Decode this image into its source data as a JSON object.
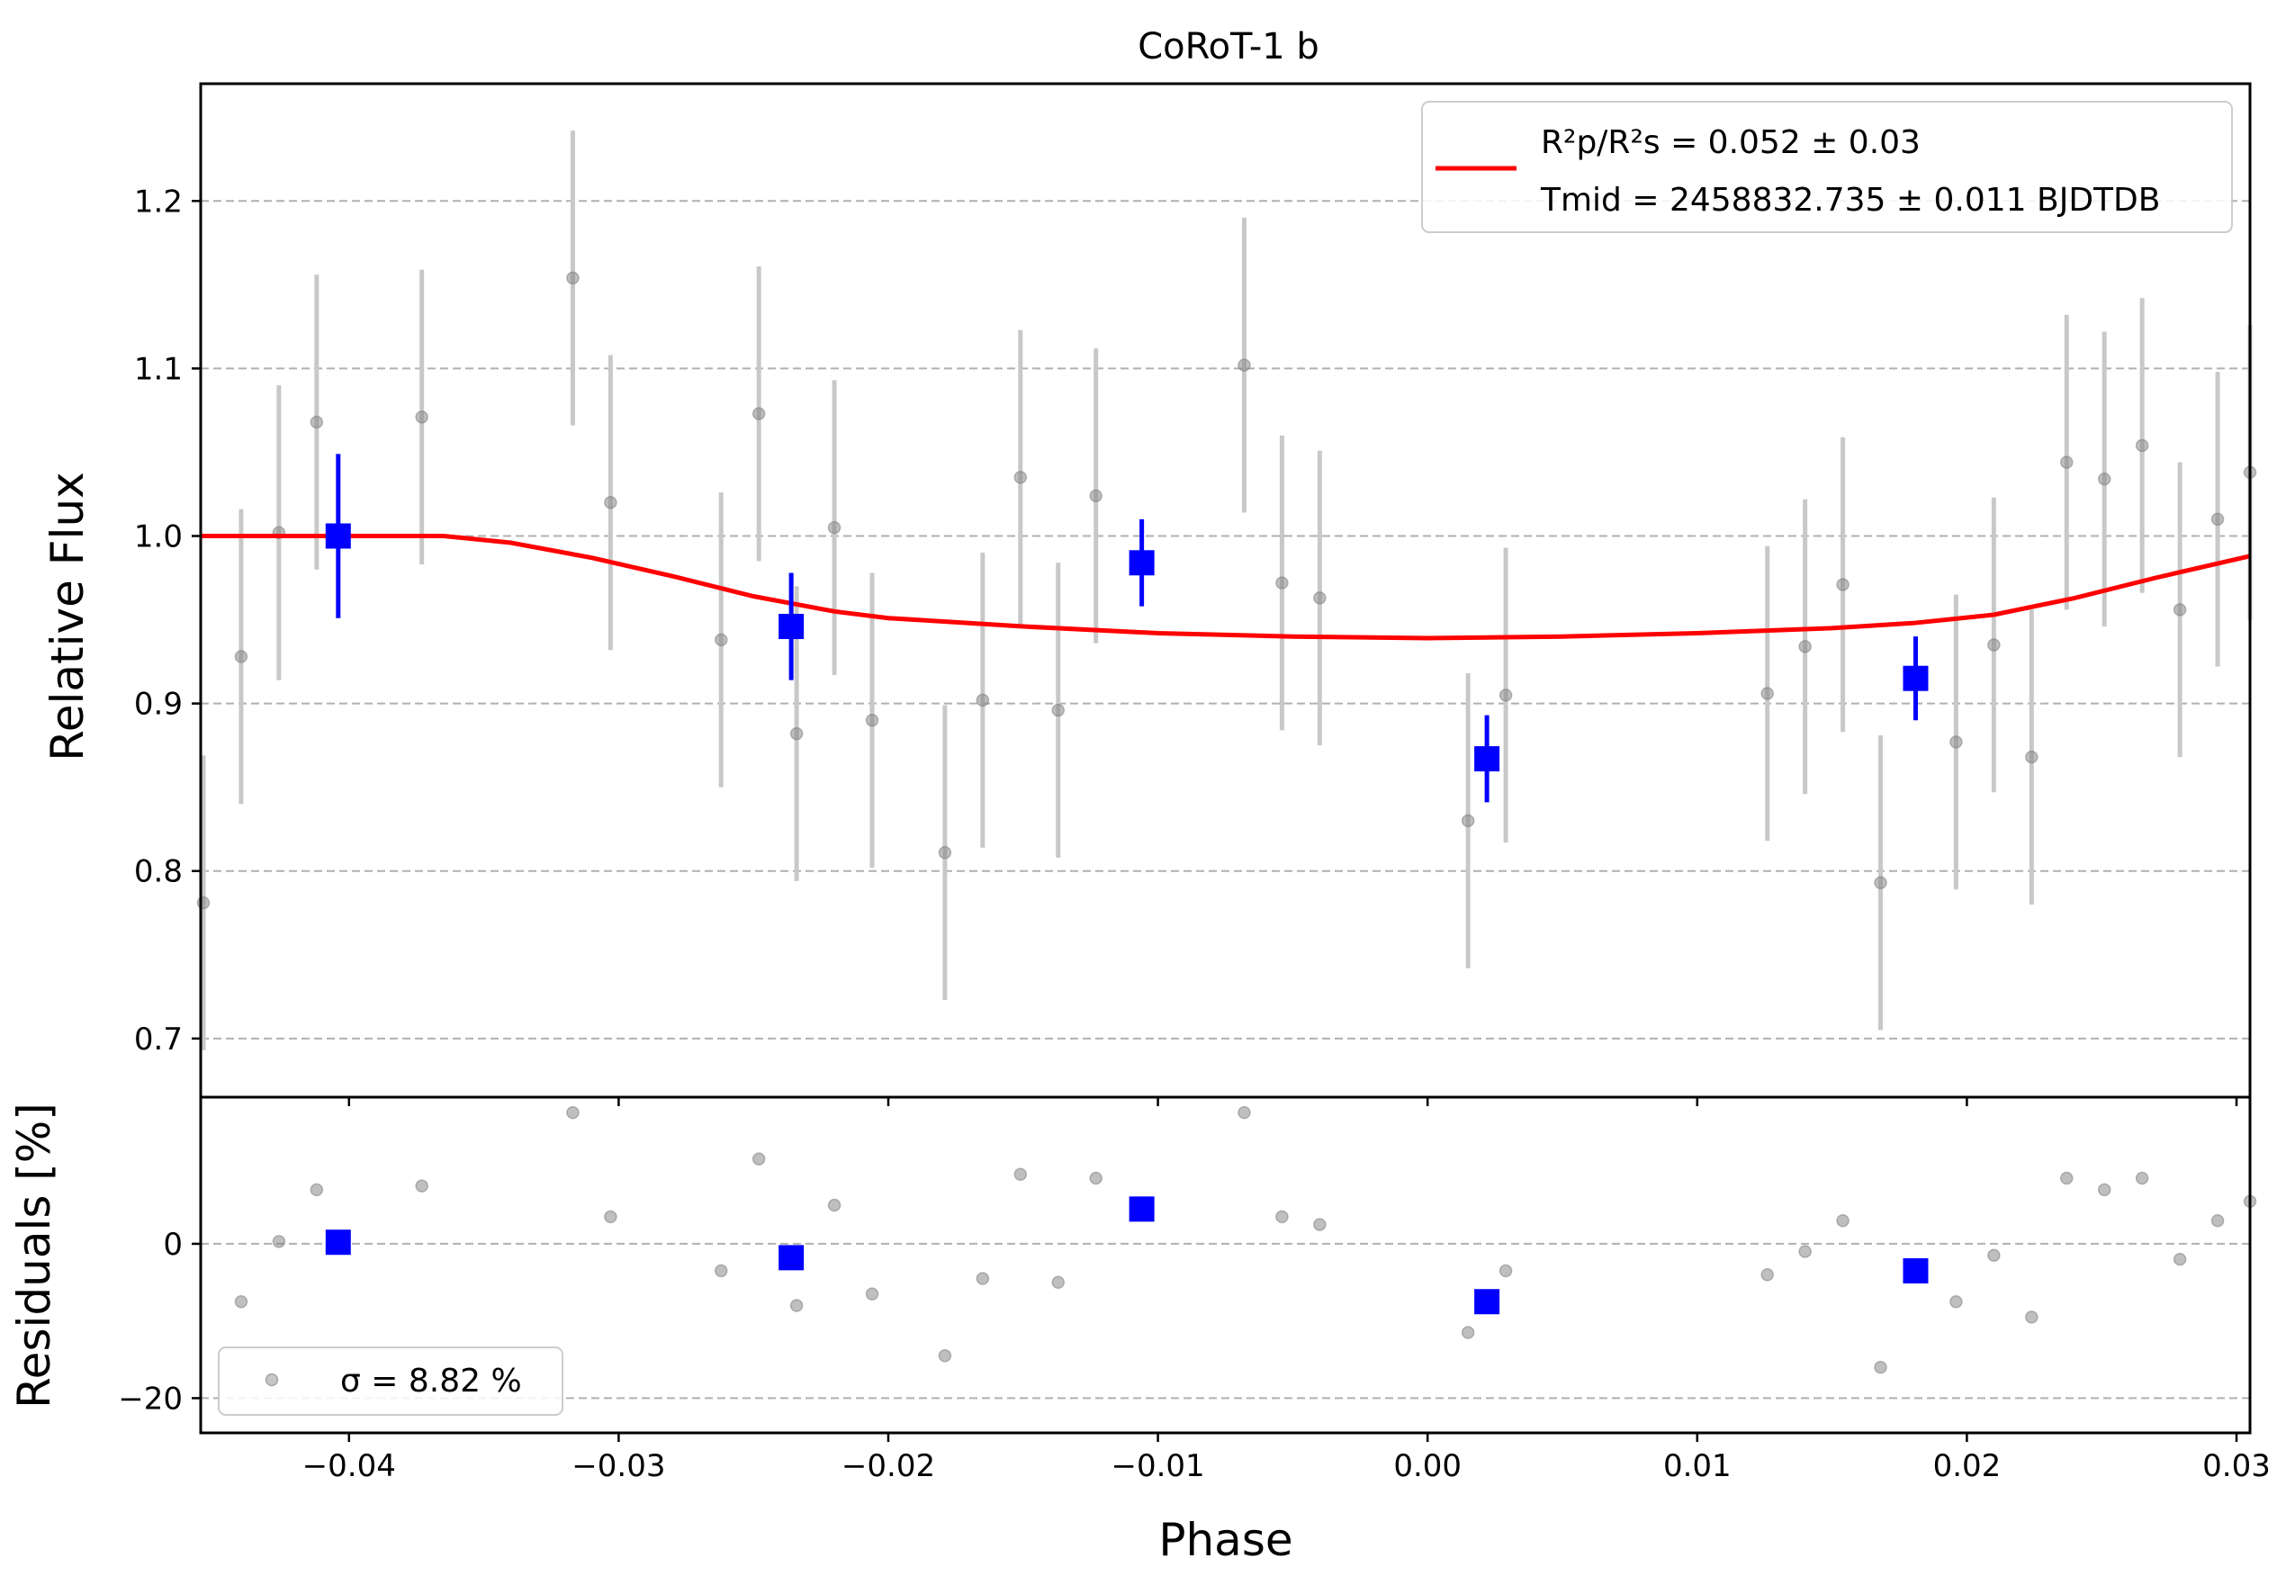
{
  "chart_data": [
    {
      "type": "scatter",
      "panel": "light-curve",
      "title": "CoRoT-1 b",
      "xlabel": "Phase",
      "ylabel": "Relative Flux",
      "xlim": [
        -0.0455,
        0.0305
      ],
      "ylim": [
        0.665,
        1.27
      ],
      "yticks": [
        0.7,
        0.8,
        0.9,
        1.0,
        1.1,
        1.2
      ],
      "ytick_labels": [
        "0.7",
        "0.8",
        "0.9",
        "1.0",
        "1.1",
        "1.2"
      ],
      "grid": "horizontal dashed",
      "legend_position": "top-right",
      "legend": {
        "model_label_1": "R²p/R²s = 0.052 ± 0.03",
        "model_label_2": "Tmid = 2458832.735 ± 0.011 BJDTDB"
      },
      "colors": {
        "raw": "#808080",
        "binned": "#0000ff",
        "model": "#ff0000",
        "errorbar_raw": "#c8c8c8"
      },
      "series": [
        {
          "name": "raw",
          "points": [
            {
              "x": -0.0454,
              "y": 0.781,
              "err": 0.088
            },
            {
              "x": -0.044,
              "y": 0.928,
              "err": 0.088
            },
            {
              "x": -0.0426,
              "y": 1.002,
              "err": 0.088
            },
            {
              "x": -0.0412,
              "y": 1.068,
              "err": 0.088
            },
            {
              "x": -0.0373,
              "y": 1.071,
              "err": 0.088
            },
            {
              "x": -0.0317,
              "y": 1.154,
              "err": 0.088
            },
            {
              "x": -0.0303,
              "y": 1.02,
              "err": 0.088
            },
            {
              "x": -0.0262,
              "y": 0.938,
              "err": 0.088
            },
            {
              "x": -0.0248,
              "y": 1.073,
              "err": 0.088
            },
            {
              "x": -0.0234,
              "y": 0.882,
              "err": 0.088
            },
            {
              "x": -0.022,
              "y": 1.005,
              "err": 0.088
            },
            {
              "x": -0.0206,
              "y": 0.89,
              "err": 0.088
            },
            {
              "x": -0.0179,
              "y": 0.811,
              "err": 0.088
            },
            {
              "x": -0.0165,
              "y": 0.902,
              "err": 0.088
            },
            {
              "x": -0.0151,
              "y": 1.035,
              "err": 0.088
            },
            {
              "x": -0.0137,
              "y": 0.896,
              "err": 0.088
            },
            {
              "x": -0.0123,
              "y": 1.024,
              "err": 0.088
            },
            {
              "x": -0.0068,
              "y": 1.102,
              "err": 0.088
            },
            {
              "x": -0.0054,
              "y": 0.972,
              "err": 0.088
            },
            {
              "x": -0.004,
              "y": 0.963,
              "err": 0.088
            },
            {
              "x": 0.0015,
              "y": 0.83,
              "err": 0.088
            },
            {
              "x": 0.0029,
              "y": 0.905,
              "err": 0.088
            },
            {
              "x": 0.0126,
              "y": 0.906,
              "err": 0.088
            },
            {
              "x": 0.014,
              "y": 0.934,
              "err": 0.088
            },
            {
              "x": 0.0154,
              "y": 0.971,
              "err": 0.088
            },
            {
              "x": 0.0168,
              "y": 0.793,
              "err": 0.088
            },
            {
              "x": 0.0196,
              "y": 0.877,
              "err": 0.088
            },
            {
              "x": 0.021,
              "y": 0.935,
              "err": 0.088
            },
            {
              "x": 0.0224,
              "y": 0.868,
              "err": 0.088
            },
            {
              "x": 0.0237,
              "y": 1.044,
              "err": 0.088
            },
            {
              "x": 0.0251,
              "y": 1.034,
              "err": 0.088
            },
            {
              "x": 0.0265,
              "y": 1.054,
              "err": 0.088
            },
            {
              "x": 0.0279,
              "y": 0.956,
              "err": 0.088
            },
            {
              "x": 0.0293,
              "y": 1.01,
              "err": 0.088
            },
            {
              "x": 0.0305,
              "y": 1.038,
              "err": 0.088
            }
          ]
        },
        {
          "name": "binned",
          "points": [
            {
              "x": -0.0404,
              "y": 1.0,
              "err": 0.049
            },
            {
              "x": -0.0236,
              "y": 0.946,
              "err": 0.032
            },
            {
              "x": -0.0106,
              "y": 0.984,
              "err": 0.026
            },
            {
              "x": 0.0022,
              "y": 0.867,
              "err": 0.026
            },
            {
              "x": 0.0181,
              "y": 0.915,
              "err": 0.025
            }
          ]
        },
        {
          "name": "model",
          "x": [
            -0.0455,
            -0.04,
            -0.0365,
            -0.034,
            -0.031,
            -0.028,
            -0.025,
            -0.022,
            -0.02,
            -0.015,
            -0.01,
            -0.005,
            0.0,
            0.005,
            0.01,
            0.015,
            0.018,
            0.021,
            0.024,
            0.027,
            0.0305
          ],
          "y": [
            1.0,
            1.0,
            1.0,
            0.996,
            0.987,
            0.976,
            0.964,
            0.955,
            0.951,
            0.946,
            0.942,
            0.94,
            0.939,
            0.94,
            0.942,
            0.945,
            0.948,
            0.953,
            0.963,
            0.975,
            0.988
          ]
        }
      ]
    },
    {
      "type": "scatter",
      "panel": "residuals",
      "xlabel": "Phase",
      "ylabel": "Residuals [%]",
      "xlim": [
        -0.0455,
        0.0305
      ],
      "ylim": [
        -24.5,
        19.0
      ],
      "yticks": [
        -20,
        0
      ],
      "ytick_labels": [
        "−20",
        "0"
      ],
      "xticks": [
        -0.04,
        -0.03,
        -0.02,
        -0.01,
        0.0,
        0.01,
        0.02,
        0.03
      ],
      "xtick_labels": [
        "−0.04",
        "−0.03",
        "−0.02",
        "−0.01",
        "0.00",
        "0.01",
        "0.02",
        "0.03"
      ],
      "grid": "horizontal dashed",
      "legend_position": "bottom-left",
      "legend": {
        "sigma_label": "σ = 8.82 %"
      },
      "series": [
        {
          "name": "raw",
          "points": [
            {
              "x": -0.044,
              "y": -7.5
            },
            {
              "x": -0.0426,
              "y": 0.3
            },
            {
              "x": -0.0412,
              "y": 7.0
            },
            {
              "x": -0.0373,
              "y": 7.5
            },
            {
              "x": -0.0317,
              "y": 17.0
            },
            {
              "x": -0.0303,
              "y": 3.5
            },
            {
              "x": -0.0262,
              "y": -3.5
            },
            {
              "x": -0.0248,
              "y": 11.0
            },
            {
              "x": -0.0234,
              "y": -8.0
            },
            {
              "x": -0.022,
              "y": 5.0
            },
            {
              "x": -0.0206,
              "y": -6.5
            },
            {
              "x": -0.0179,
              "y": -14.5
            },
            {
              "x": -0.0165,
              "y": -4.5
            },
            {
              "x": -0.0151,
              "y": 9.0
            },
            {
              "x": -0.0137,
              "y": -5.0
            },
            {
              "x": -0.0123,
              "y": 8.5
            },
            {
              "x": -0.0068,
              "y": 17.0
            },
            {
              "x": -0.0054,
              "y": 3.5
            },
            {
              "x": -0.004,
              "y": 2.5
            },
            {
              "x": 0.0015,
              "y": -11.5
            },
            {
              "x": 0.0029,
              "y": -3.5
            },
            {
              "x": 0.0126,
              "y": -4.0
            },
            {
              "x": 0.014,
              "y": -1.0
            },
            {
              "x": 0.0154,
              "y": 3.0
            },
            {
              "x": 0.0168,
              "y": -16.0
            },
            {
              "x": 0.0196,
              "y": -7.5
            },
            {
              "x": 0.021,
              "y": -1.5
            },
            {
              "x": 0.0224,
              "y": -9.5
            },
            {
              "x": 0.0237,
              "y": 8.5
            },
            {
              "x": 0.0251,
              "y": 7.0
            },
            {
              "x": 0.0265,
              "y": 8.5
            },
            {
              "x": 0.0279,
              "y": -2.0
            },
            {
              "x": 0.0293,
              "y": 3.0
            },
            {
              "x": 0.0305,
              "y": 5.5
            }
          ]
        },
        {
          "name": "binned",
          "points": [
            {
              "x": -0.0404,
              "y": 0.2
            },
            {
              "x": -0.0236,
              "y": -1.8
            },
            {
              "x": -0.0106,
              "y": 4.5
            },
            {
              "x": 0.0022,
              "y": -7.5
            },
            {
              "x": 0.0181,
              "y": -3.5
            }
          ]
        }
      ]
    }
  ]
}
